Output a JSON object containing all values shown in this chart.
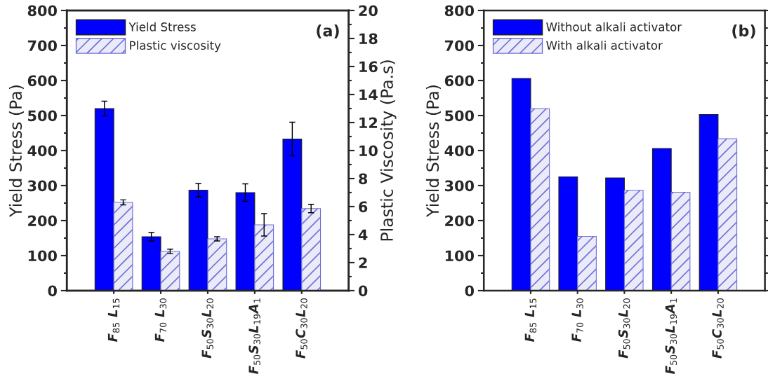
{
  "chart_data": [
    {
      "type": "bar",
      "categories": [
        "F$_{85}$ L$_{15}$",
        "F$_{70}$ L$_{30}$",
        "F$_{50}$S$_{30}$L$_{20}$",
        "F$_{50}$S$_{30}$L$_{19}$A$_{1}$",
        "F$_{50}$C$_{30}$L$_{20}$"
      ],
      "series": [
        {
          "name": "Yield Stress",
          "color": "#0000ff",
          "values": [
            520,
            154,
            287,
            280,
            433
          ],
          "errors": [
            21,
            12,
            19,
            25,
            48
          ]
        },
        {
          "name": "Plastic viscosity",
          "color": "#7070d8",
          "axis": "y2",
          "values": [
            6.3,
            2.8,
            3.7,
            4.7,
            5.86
          ],
          "errors": [
            0.18,
            0.16,
            0.15,
            0.8,
            0.3
          ]
        }
      ],
      "ylabel": "Yield Stress (Pa)",
      "y2label": "Plastic Viscosity (Pa.s)",
      "ylim": [
        0,
        800
      ],
      "yticks": [
        0,
        100,
        200,
        300,
        400,
        500,
        600,
        700,
        800
      ],
      "y2lim": [
        0,
        20
      ],
      "y2ticks": [
        0,
        2,
        4,
        6,
        8,
        10,
        12,
        14,
        16,
        18,
        20
      ],
      "annotations": [
        "(a)"
      ],
      "legend": "top left",
      "grid": false
    },
    {
      "type": "bar",
      "categories": [
        "F$_{85}$ L$_{15}$",
        "F$_{70}$ L$_{30}$",
        "F$_{50}$S$_{30}$L$_{20}$",
        "F$_{50}$S$_{30}$L$_{19}$A$_{1}$",
        "F$_{50}$C$_{30}$L$_{20}$"
      ],
      "series": [
        {
          "name": "Without alkali activator",
          "color": "#0000ff",
          "values": [
            606,
            325,
            322,
            406,
            503
          ]
        },
        {
          "name": "With alkali activator",
          "color": "#7070d8",
          "values": [
            520,
            155,
            287,
            281,
            434
          ]
        }
      ],
      "ylabel": "Yield Stress (Pa)",
      "ylim": [
        0,
        800
      ],
      "yticks": [
        0,
        100,
        200,
        300,
        400,
        500,
        600,
        700,
        800
      ],
      "annotations": [
        "(b)"
      ],
      "legend": "top left",
      "grid": false
    }
  ]
}
